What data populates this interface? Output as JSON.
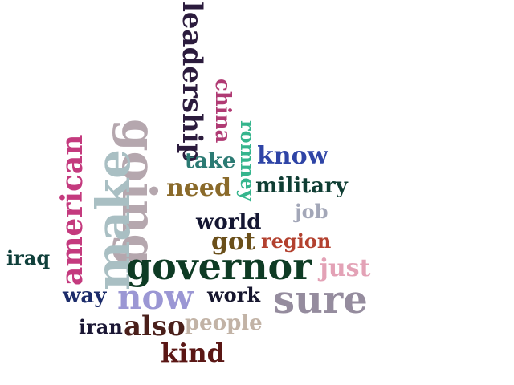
{
  "words": {
    "leadership": {
      "text": "leadership",
      "color": "#2b1b3d"
    },
    "china": {
      "text": "china",
      "color": "#b03a73"
    },
    "going": {
      "text": "going",
      "color": "#b5a7ae"
    },
    "make": {
      "text": "make",
      "color": "#a9bfc3"
    },
    "american": {
      "text": "american",
      "color": "#c43a7e"
    },
    "romney": {
      "text": "romney",
      "color": "#35b58d"
    },
    "know": {
      "text": "know",
      "color": "#2e44a6"
    },
    "take": {
      "text": "take",
      "color": "#2b7a73"
    },
    "need": {
      "text": "need",
      "color": "#8a6a2a"
    },
    "military": {
      "text": "military",
      "color": "#0f3d33"
    },
    "job": {
      "text": "job",
      "color": "#a3a7b8"
    },
    "world": {
      "text": "world",
      "color": "#141632"
    },
    "got": {
      "text": "got",
      "color": "#6a4f1a"
    },
    "region": {
      "text": "region",
      "color": "#b3412f"
    },
    "iraq": {
      "text": "iraq",
      "color": "#0f3f3a"
    },
    "governor": {
      "text": "governor",
      "color": "#0e3b24"
    },
    "just": {
      "text": "just",
      "color": "#e3a2b6"
    },
    "way": {
      "text": "way",
      "color": "#1c2c6a"
    },
    "now": {
      "text": "now",
      "color": "#9b97d4"
    },
    "work": {
      "text": "work",
      "color": "#16162e"
    },
    "sure": {
      "text": "sure",
      "color": "#958c9e"
    },
    "iran": {
      "text": "iran",
      "color": "#1a1634"
    },
    "also": {
      "text": "also",
      "color": "#4a1f1a"
    },
    "people": {
      "text": "people",
      "color": "#c2b3a6"
    },
    "kind": {
      "text": "kind",
      "color": "#5a1614"
    }
  }
}
